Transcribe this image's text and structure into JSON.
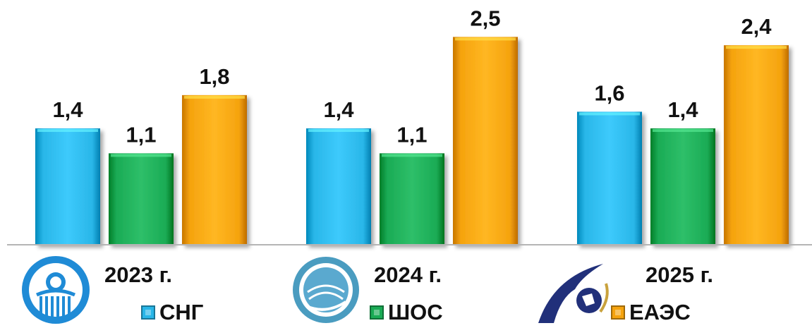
{
  "chart_data": {
    "type": "bar",
    "categories": [
      "2023 г.",
      "2024 г.",
      "2025 г."
    ],
    "series": [
      {
        "name": "СНГ",
        "values": [
          1.4,
          1.4,
          1.6
        ],
        "color": "#29b6e8"
      },
      {
        "name": "ШОС",
        "values": [
          1.1,
          1.1,
          1.4
        ],
        "color": "#1aab55"
      },
      {
        "name": "ЕАЭС",
        "values": [
          1.8,
          2.5,
          2.4
        ],
        "color": "#f5a30e"
      }
    ],
    "data_labels": [
      [
        "1,4",
        "1,4",
        "1,6"
      ],
      [
        "1,1",
        "1,1",
        "1,4"
      ],
      [
        "1,8",
        "2,5",
        "2,4"
      ]
    ],
    "ylim": [
      0,
      2.8
    ],
    "grid": false,
    "legend_position": "bottom"
  },
  "logos": [
    {
      "icon": "cis-emblem-icon"
    },
    {
      "icon": "sco-emblem-icon"
    },
    {
      "icon": "eaeu-emblem-icon"
    }
  ]
}
